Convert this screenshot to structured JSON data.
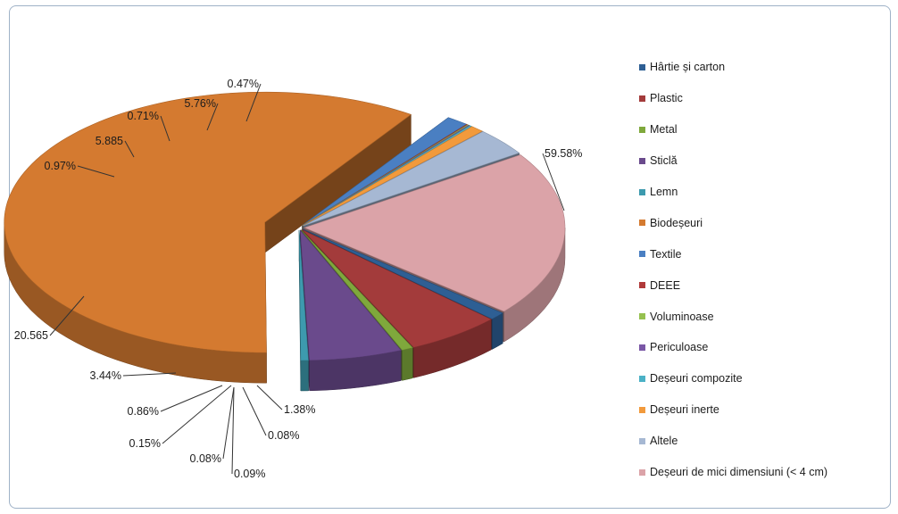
{
  "chart_data": {
    "type": "pie",
    "style": "3d-exploded",
    "legend_position": "right",
    "categories": [
      "Hârtie și carton",
      "Plastic",
      "Metal",
      "Sticlă",
      "Lemn",
      "Biodeșeuri",
      "Textile",
      "DEEE",
      "Voluminoase",
      "Periculoase",
      "Deșeuri compozite",
      "Deșeuri inerte",
      "Altele",
      "Deșeuri de mici dimensiuni (< 4 cm)"
    ],
    "values": [
      0.97,
      5.885,
      0.71,
      5.76,
      0.47,
      59.58,
      1.38,
      0.08,
      0.09,
      0.08,
      0.15,
      0.86,
      3.44,
      20.565
    ],
    "data_labels": [
      "0.97%",
      "5.885",
      "0.71%",
      "5.76%",
      "0.47%",
      "59.58%",
      "1.38%",
      "0.08%",
      "0.09%",
      "0.08%",
      "0.15%",
      "0.86%",
      "3.44%",
      "20.565"
    ],
    "colors": [
      "#2e5f94",
      "#a33b3b",
      "#7fa83c",
      "#6a4a8c",
      "#3d9aae",
      "#d47a30",
      "#4a7fc2",
      "#b03a3a",
      "#96c150",
      "#7a57a6",
      "#4bb1c6",
      "#f29a3c",
      "#a6b8d3",
      "#dba3a8"
    ],
    "legend": [
      "Hârtie și carton",
      "Plastic",
      "Metal",
      "Sticlă",
      "Lemn",
      "Biodeșeuri",
      "Textile",
      "DEEE",
      "Voluminoase",
      "Periculoase",
      "Deșeuri compozite",
      "Deșeuri inerte",
      "Altele",
      "Deșeuri de mici dimensiuni (< 4 cm)"
    ]
  }
}
